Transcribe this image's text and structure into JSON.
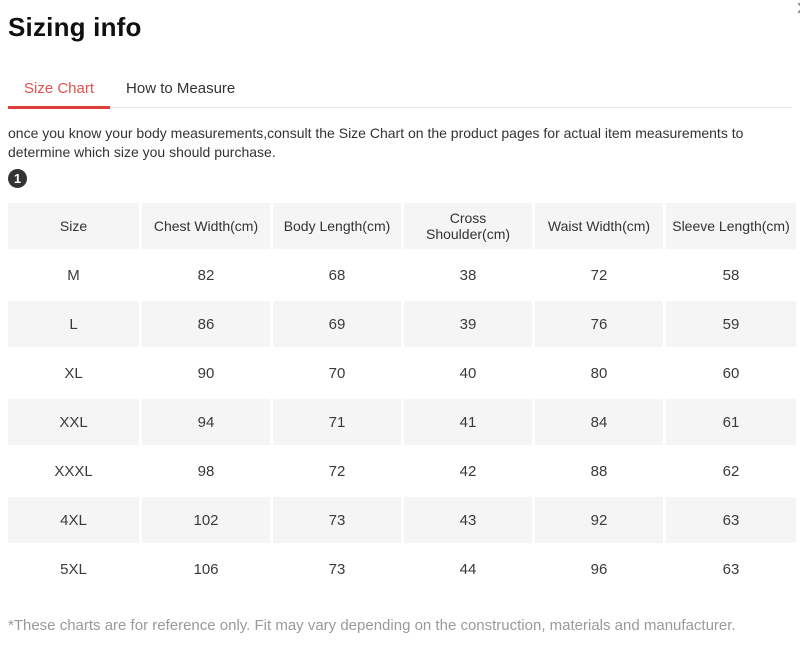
{
  "header": {
    "title": "Sizing info",
    "close_label": "×"
  },
  "tabs": [
    {
      "label": "Size Chart",
      "active": true
    },
    {
      "label": "How to Measure",
      "active": false
    }
  ],
  "description": "once you know your body measurements,consult the Size Chart on the product pages for actual item measurements to determine which size you should purchase.",
  "step_badge": "1",
  "size_table": {
    "columns": [
      "Size",
      "Chest Width(cm)",
      "Body Length(cm)",
      "Cross Shoulder(cm)",
      "Waist Width(cm)",
      "Sleeve Length(cm)"
    ],
    "rows": [
      [
        "M",
        "82",
        "68",
        "38",
        "72",
        "58"
      ],
      [
        "L",
        "86",
        "69",
        "39",
        "76",
        "59"
      ],
      [
        "XL",
        "90",
        "70",
        "40",
        "80",
        "60"
      ],
      [
        "XXL",
        "94",
        "71",
        "41",
        "84",
        "61"
      ],
      [
        "XXXL",
        "98",
        "72",
        "42",
        "88",
        "62"
      ],
      [
        "4XL",
        "102",
        "73",
        "43",
        "92",
        "63"
      ],
      [
        "5XL",
        "106",
        "73",
        "44",
        "96",
        "63"
      ]
    ],
    "striped_row_indices": [
      1,
      3,
      5
    ]
  },
  "footer_note": "*These charts are for reference only. Fit may vary depending on the construction, materials and manufacturer.",
  "colors": {
    "accent_text": "#e2524e",
    "accent_underline": "#e03e3a",
    "table_header_bg": "#f5f5f6",
    "zebra_row_bg": "#f5f5f6",
    "muted_text": "#9a9a9a",
    "divider": "#e9e9e9",
    "badge_bg": "#333333"
  }
}
